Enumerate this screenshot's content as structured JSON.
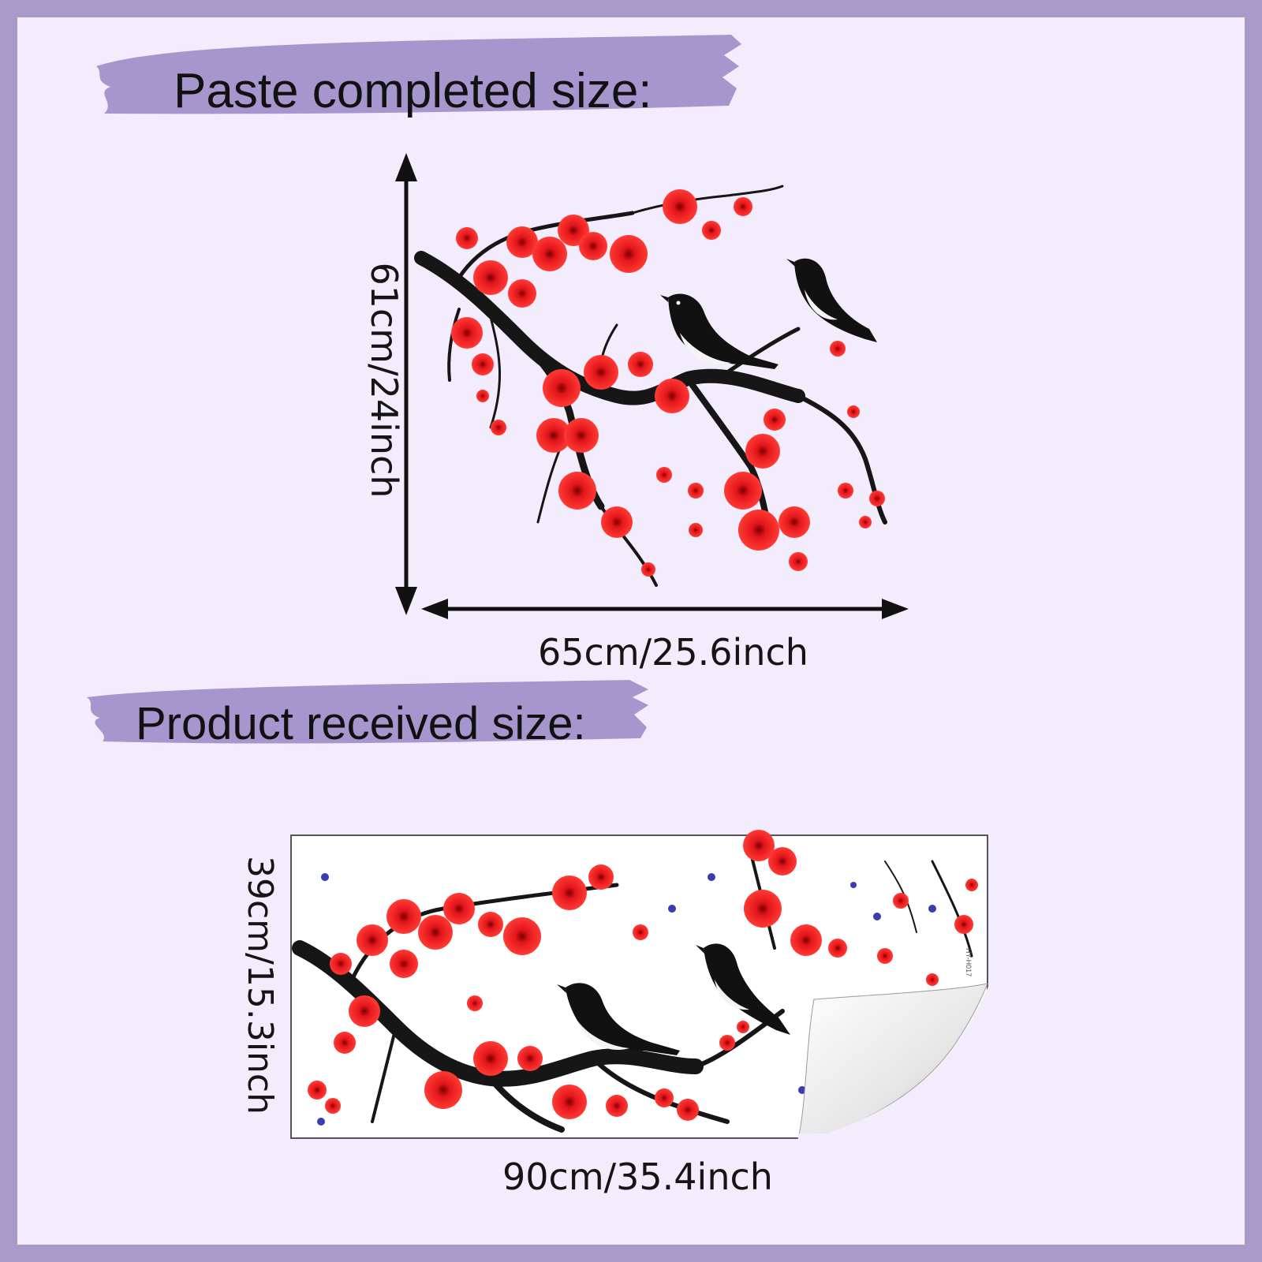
{
  "headers": {
    "completed": "Paste completed size:",
    "received": "Product  received size:"
  },
  "dimensions": {
    "completed_height": "61cm/24inch",
    "completed_width": "65cm/25.6inch",
    "received_height": "39cm/15.3inch",
    "received_width": "90cm/35.4inch"
  },
  "sticker": {
    "code": "HY-H017"
  },
  "colors": {
    "border": "#a99ac9",
    "background": "#f2ecfc",
    "brush": "#a795cd",
    "blossom": "#e3161b",
    "branch": "#1a1a1a"
  }
}
